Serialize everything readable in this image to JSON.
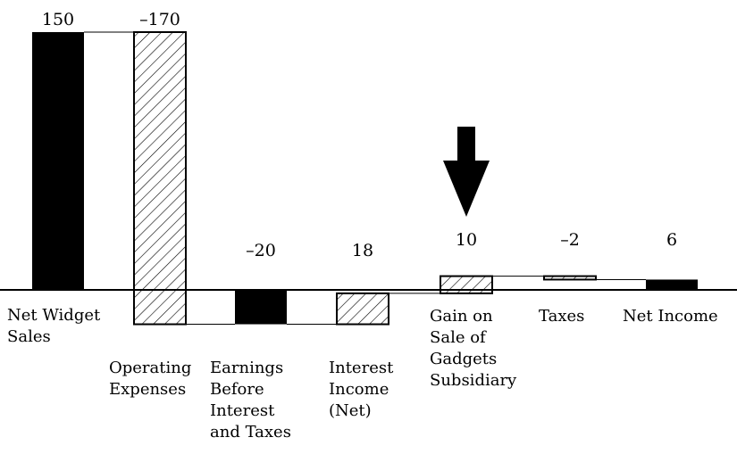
{
  "chart_data": {
    "type": "waterfall",
    "title": "",
    "xlabel": "",
    "ylabel": "",
    "ylim": [
      -22,
      150
    ],
    "grid": false,
    "legend": "none",
    "colors": {
      "solid": "#000000",
      "background": "#ffffff",
      "hatch": "#000000"
    },
    "bars": [
      {
        "category": "Net Widget Sales",
        "label": "150",
        "start": 0,
        "end": 150,
        "style": "solid",
        "label_lines": [
          "Net Widget",
          "Sales"
        ]
      },
      {
        "category": "Operating Expenses",
        "label": "–170",
        "start": 150,
        "end": -20,
        "style": "hatched",
        "label_lines": [
          "Operating",
          "Expenses"
        ]
      },
      {
        "category": "Earnings Before Interest and Taxes",
        "label": "–20",
        "start": 0,
        "end": -20,
        "style": "solid",
        "label_lines": [
          "Earnings",
          "Before",
          "Interest",
          "and Taxes"
        ]
      },
      {
        "category": "Interest Income (Net)",
        "label": "18",
        "start": -20,
        "end": -2,
        "style": "hatched",
        "label_lines": [
          "Interest",
          "Income",
          "(Net)"
        ]
      },
      {
        "category": "Gain on Sale of Gadgets Subsidiary",
        "label": "10",
        "start": -2,
        "end": 8,
        "style": "hatched",
        "label_lines": [
          "Gain on",
          "Sale of",
          "Gadgets",
          "Subsidiary"
        ]
      },
      {
        "category": "Taxes",
        "label": "–2",
        "start": 8,
        "end": 6,
        "style": "hatched",
        "label_lines": [
          "Taxes"
        ]
      },
      {
        "category": "Net Income",
        "label": "6",
        "start": 0,
        "end": 6,
        "style": "solid",
        "label_lines": [
          "Net Income"
        ]
      }
    ],
    "annotation": {
      "type": "arrow",
      "points_to": "Gain on Sale of Gadgets Subsidiary",
      "direction": "down"
    }
  }
}
